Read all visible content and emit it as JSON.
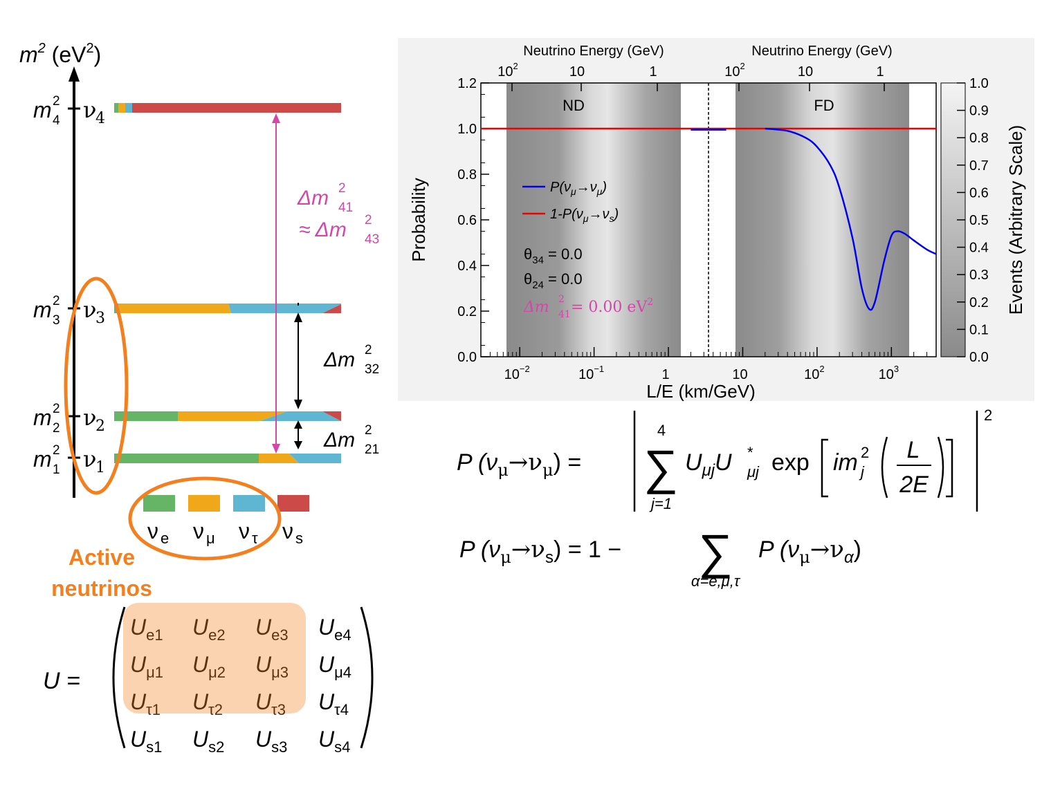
{
  "level_diagram": {
    "axis_label": "m",
    "axis_label_sup": "2",
    "axis_unit_pre": " (eV",
    "axis_unit_sup": "2",
    "axis_unit_post": ")",
    "states": [
      {
        "mass": "m",
        "mass_sub": "4",
        "mass_sup": "2",
        "flavor": "ν",
        "flavor_sub": "4"
      },
      {
        "mass": "m",
        "mass_sub": "3",
        "mass_sup": "2",
        "flavor": "ν",
        "flavor_sub": "3"
      },
      {
        "mass": "m",
        "mass_sub": "2",
        "mass_sup": "2",
        "flavor": "ν",
        "flavor_sub": "2"
      },
      {
        "mass": "m",
        "mass_sub": "1",
        "mass_sup": "2",
        "flavor": "ν",
        "flavor_sub": "1"
      }
    ],
    "splittings": [
      {
        "sym": "Δm",
        "sub": "41",
        "sup": "2"
      },
      {
        "sym": "≈ Δm",
        "sub": "43",
        "sup": "2"
      },
      {
        "sym": "Δm",
        "sub": "32",
        "sup": "2"
      },
      {
        "sym": "Δm",
        "sub": "21",
        "sup": "2"
      }
    ],
    "legend": [
      {
        "sym": "ν",
        "sub": "e",
        "color": "#66b566"
      },
      {
        "sym": "ν",
        "sub": "μ",
        "color": "#f0a81a"
      },
      {
        "sym": "ν",
        "sub": "τ",
        "color": "#5fb6d2"
      },
      {
        "sym": "ν",
        "sub": "s",
        "color": "#cc4a47"
      }
    ],
    "active_label_1": "Active",
    "active_label_2": "neutrinos",
    "colors": {
      "accent_orange": "#f47f1f",
      "pink": "#d447a8",
      "active_fill": "#fcd3b0"
    }
  },
  "matrix": {
    "lhs": "U =",
    "rows": [
      [
        {
          "s": "U",
          "sub": "e1"
        },
        {
          "s": "U",
          "sub": "e2"
        },
        {
          "s": "U",
          "sub": "e3"
        },
        {
          "s": "U",
          "sub": "e4"
        }
      ],
      [
        {
          "s": "U",
          "sub": "μ1"
        },
        {
          "s": "U",
          "sub": "μ2"
        },
        {
          "s": "U",
          "sub": "μ3"
        },
        {
          "s": "U",
          "sub": "μ4"
        }
      ],
      [
        {
          "s": "U",
          "sub": "τ1"
        },
        {
          "s": "U",
          "sub": "τ2"
        },
        {
          "s": "U",
          "sub": "τ3"
        },
        {
          "s": "U",
          "sub": "τ4"
        }
      ],
      [
        {
          "s": "U",
          "sub": "s1"
        },
        {
          "s": "U",
          "sub": "s2"
        },
        {
          "s": "U",
          "sub": "s3"
        },
        {
          "s": "U",
          "sub": "s4"
        }
      ]
    ]
  },
  "plot": {
    "top_axis_title": "Neutrino Energy (GeV)",
    "top_ticks": [
      {
        "b": "10",
        "e": "2"
      },
      {
        "b": "10",
        "e": ""
      },
      {
        "b": "1",
        "e": ""
      }
    ],
    "bottom_axis_title": "L/E (km/GeV)",
    "bottom_ticks": [
      {
        "b": "10",
        "e": "−2"
      },
      {
        "b": "10",
        "e": "−1"
      },
      {
        "b": "1",
        "e": ""
      },
      {
        "b": "10",
        "e": ""
      },
      {
        "b": "10",
        "e": "2"
      },
      {
        "b": "10",
        "e": "3"
      }
    ],
    "y_axis_title": "Probability",
    "y_ticks": [
      "0.0",
      "0.2",
      "0.4",
      "0.6",
      "0.8",
      "1.0",
      "1.2"
    ],
    "z_axis_title": "Events (Arbitrary Scale)",
    "z_ticks": [
      "0.0",
      "0.1",
      "0.2",
      "0.3",
      "0.4",
      "0.5",
      "0.6",
      "0.7",
      "0.8",
      "0.9",
      "1.0"
    ],
    "region_labels": [
      "ND",
      "FD"
    ],
    "legend": [
      {
        "pre": "P(ν",
        "s1": "μ",
        "mid": "→ν",
        "s2": "μ",
        "post": ")",
        "color": "#0000ee"
      },
      {
        "pre": "1-P(ν",
        "s1": "μ",
        "mid": "→ν",
        "s2": "s",
        "post": ")",
        "color": "#ee0000"
      }
    ],
    "params": [
      {
        "sym": "θ",
        "sub": "34",
        "val": " = 0.0"
      },
      {
        "sym": "θ",
        "sub": "24",
        "val": " = 0.0"
      }
    ],
    "dm_param": {
      "pre": "Δm",
      "sub": "41",
      "sup": "2",
      "val": " = 0.00 eV",
      "val_sup": "2",
      "color": "#d447a8"
    }
  },
  "chart_data": {
    "type": "line",
    "xlabel": "L/E (km/GeV)",
    "ylabel": "Probability",
    "x_scale": "log",
    "xlim": [
      0.003,
      4000
    ],
    "ylim": [
      0,
      1.2
    ],
    "series": [
      {
        "name": "P(νμ→νμ)",
        "x": [
          2,
          6,
          20,
          40,
          70,
          100,
          150,
          200,
          300,
          400,
          500,
          600,
          800,
          1000,
          1200,
          1500,
          2000,
          3000,
          4000
        ],
        "y": [
          0.995,
          0.995,
          1.0,
          0.99,
          0.96,
          0.92,
          0.84,
          0.74,
          0.52,
          0.3,
          0.21,
          0.24,
          0.42,
          0.53,
          0.55,
          0.54,
          0.51,
          0.47,
          0.45
        ]
      },
      {
        "name": "1-P(νμ→νs)",
        "x": [
          0.003,
          4000
        ],
        "y": [
          1.0,
          1.0
        ]
      }
    ]
  },
  "equations": {
    "eq1_lhs": "P (ν",
    "eq1_sub": "μ",
    "eq1_mid": "→ν",
    "eq1_sub2": "μ",
    "eq1_rhs": ") =",
    "sum_upper": "4",
    "sum_lower": "j=1",
    "body": "U",
    "body_sub": "μj",
    "body2": "U",
    "body2_sub": "μj",
    "body2_sup": "*",
    "exp": "exp",
    "im": "im",
    "im_sub": "j",
    "im_sup": "2",
    "frac_num": "L",
    "frac_den": "2E",
    "outer_sup": "2",
    "eq2_lhs": "P (ν",
    "eq2_sub": "μ",
    "eq2_mid": "→ν",
    "eq2_sub2": "s",
    "eq2_rhs": ") = 1 −",
    "eq2_sum_lower": "α=e,μ,τ",
    "eq2_term": "P (ν",
    "eq2_term_sub": "μ",
    "eq2_term_mid": "→ν",
    "eq2_term_sub2": "α",
    "eq2_term_end": ")"
  }
}
